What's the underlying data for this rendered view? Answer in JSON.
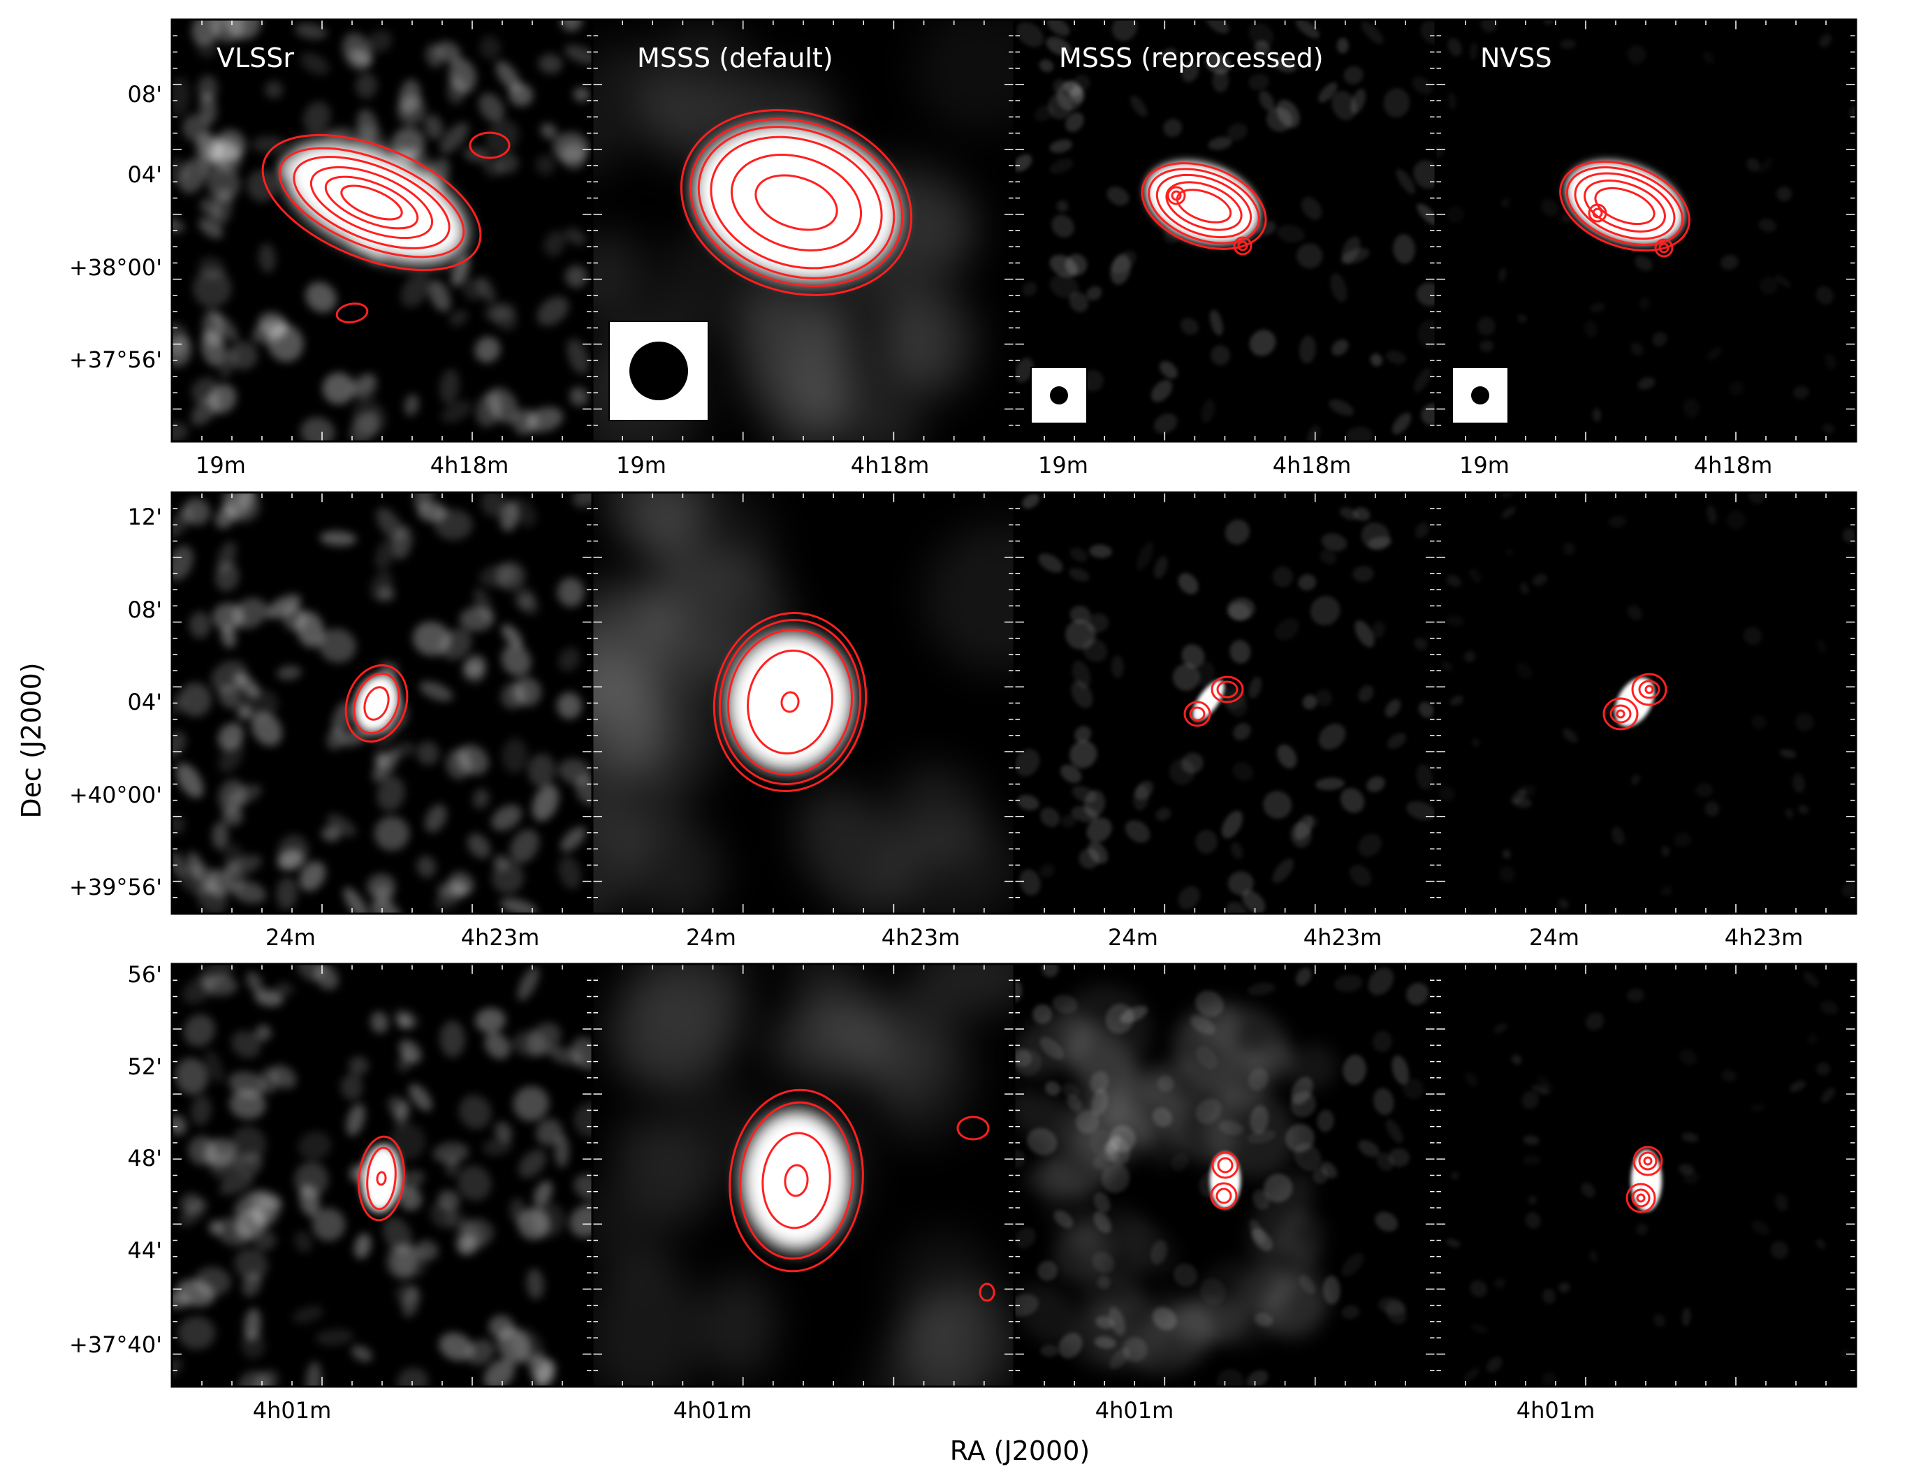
{
  "figure": {
    "x_axis_label": "RA (J2000)",
    "y_axis_label": "Dec (J2000)",
    "colors": {
      "contour": "#ff2020",
      "background": "#000000",
      "frame": "#000000",
      "panel_label": "#ffffff",
      "beam_box": "#ffffff",
      "beam": "#000000"
    },
    "column_labels": [
      "VLSSr",
      "MSSS (default)",
      "MSSS (reprocessed)",
      "NVSS"
    ],
    "rows": [
      {
        "dec_ticks": [
          "08'",
          "04'",
          "+38°00'",
          "+37°56'"
        ],
        "ra_ticks": [
          "19m",
          "4h18m"
        ]
      },
      {
        "dec_ticks": [
          "12'",
          "08'",
          "04'",
          "+40°00'",
          "+39°56'"
        ],
        "ra_ticks": [
          "24m",
          "4h23m"
        ]
      },
      {
        "dec_ticks": [
          "56'",
          "52'",
          "48'",
          "44'",
          "+37°40'"
        ],
        "ra_ticks": [
          "4h01m"
        ]
      }
    ]
  }
}
